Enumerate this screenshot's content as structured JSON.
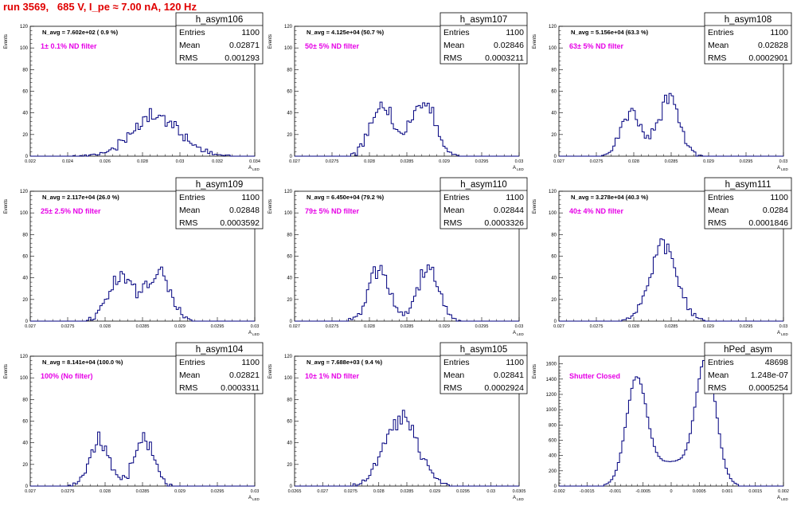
{
  "page_title": "run 3569,   685 V, I_pe ≈ 7.00 nA, 120 Hz",
  "y_axis_label": "Events",
  "x_axis_label": "A",
  "x_axis_sub": "LED",
  "stats_labels": {
    "entries": "Entries",
    "mean": "Mean",
    "rms": "RMS"
  },
  "colors": {
    "title": "#e00000",
    "hist": "#00007f",
    "annotation": "#e600e6",
    "frame": "#000000"
  },
  "chart_data": [
    {
      "type": "histogram",
      "name": "h_asym106",
      "navg": "N_avg = 7.602e+02 ( 0.9 %)",
      "note": "1± 0.1% ND filter",
      "entries": "1100",
      "mean": "0.02871",
      "rms": "0.001293",
      "xlim": [
        0.022,
        0.034
      ],
      "ylim": [
        0,
        120
      ],
      "xticks": [
        0.022,
        0.024,
        0.026,
        0.028,
        0.03,
        0.032,
        0.034
      ],
      "xtick_labels": [
        "0.022",
        "0.024",
        "0.026",
        "0.028",
        "0.03",
        "0.032",
        "0.034"
      ],
      "yticks": [
        0,
        20,
        40,
        60,
        80,
        100,
        120
      ],
      "ytick_labels": [
        "0",
        "20",
        "40",
        "60",
        "80",
        "100",
        "120"
      ],
      "dist": [
        {
          "c": 0.0287,
          "s": 0.0013,
          "a": 40
        }
      ],
      "peak": 44
    },
    {
      "type": "histogram",
      "name": "h_asym107",
      "navg": "N_avg = 4.125e+04 (50.7 %)",
      "note": "50± 5% ND filter",
      "entries": "1100",
      "mean": "0.02846",
      "rms": "0.0003211",
      "xlim": [
        0.027,
        0.03
      ],
      "ylim": [
        0,
        120
      ],
      "xticks": [
        0.027,
        0.0275,
        0.028,
        0.0285,
        0.029,
        0.0295,
        0.03
      ],
      "xtick_labels": [
        "0.027",
        "0.0275",
        "0.028",
        "0.0285",
        "0.029",
        "0.0295",
        "0.03"
      ],
      "yticks": [
        0,
        20,
        40,
        60,
        80,
        100,
        120
      ],
      "ytick_labels": [
        "0",
        "20",
        "40",
        "60",
        "80",
        "100",
        "120"
      ],
      "dist": [
        {
          "c": 0.02817,
          "s": 0.00015,
          "a": 38
        },
        {
          "c": 0.02872,
          "s": 0.00016,
          "a": 37
        }
      ],
      "peak": 50
    },
    {
      "type": "histogram",
      "name": "h_asym108",
      "navg": "N_avg = 5.156e+04 (63.3 %)",
      "note": "63± 5% ND filter",
      "entries": "1100",
      "mean": "0.02828",
      "rms": "0.0002901",
      "xlim": [
        0.027,
        0.03
      ],
      "ylim": [
        0,
        120
      ],
      "xticks": [
        0.027,
        0.0275,
        0.028,
        0.0285,
        0.029,
        0.0295,
        0.03
      ],
      "xtick_labels": [
        "0.027",
        "0.0275",
        "0.028",
        "0.0285",
        "0.029",
        "0.0295",
        "0.03"
      ],
      "yticks": [
        0,
        20,
        40,
        60,
        80,
        100,
        120
      ],
      "ytick_labels": [
        "0",
        "20",
        "40",
        "60",
        "80",
        "100",
        "120"
      ],
      "dist": [
        {
          "c": 0.02797,
          "s": 0.00014,
          "a": 36
        },
        {
          "c": 0.02847,
          "s": 0.00014,
          "a": 48
        }
      ],
      "peak": 58
    },
    {
      "type": "histogram",
      "name": "h_asym109",
      "navg": "N_avg = 2.117e+04 (26.0 %)",
      "note": "25± 2.5% ND filter",
      "entries": "1100",
      "mean": "0.02848",
      "rms": "0.0003592",
      "xlim": [
        0.027,
        0.03
      ],
      "ylim": [
        0,
        120
      ],
      "xticks": [
        0.027,
        0.0275,
        0.028,
        0.0285,
        0.029,
        0.0295,
        0.03
      ],
      "xtick_labels": [
        "0.027",
        "0.0275",
        "0.028",
        "0.0285",
        "0.029",
        "0.0295",
        "0.03"
      ],
      "yticks": [
        0,
        20,
        40,
        60,
        80,
        100,
        120
      ],
      "ytick_labels": [
        "0",
        "20",
        "40",
        "60",
        "80",
        "100",
        "120"
      ],
      "dist": [
        {
          "c": 0.02822,
          "s": 0.00017,
          "a": 35
        },
        {
          "c": 0.02872,
          "s": 0.00016,
          "a": 36
        }
      ],
      "peak": 50
    },
    {
      "type": "histogram",
      "name": "h_asym110",
      "navg": "N_avg = 6.450e+04 (79.2 %)",
      "note": "79± 5% ND filter",
      "entries": "1100",
      "mean": "0.02844",
      "rms": "0.0003326",
      "xlim": [
        0.027,
        0.03
      ],
      "ylim": [
        0,
        120
      ],
      "xticks": [
        0.027,
        0.0275,
        0.028,
        0.0285,
        0.029,
        0.0295,
        0.03
      ],
      "xtick_labels": [
        "0.027",
        "0.0275",
        "0.028",
        "0.0285",
        "0.029",
        "0.0295",
        "0.03"
      ],
      "yticks": [
        0,
        20,
        40,
        60,
        80,
        100,
        120
      ],
      "ytick_labels": [
        "0",
        "20",
        "40",
        "60",
        "80",
        "100",
        "120"
      ],
      "dist": [
        {
          "c": 0.02812,
          "s": 0.00014,
          "a": 41
        },
        {
          "c": 0.02878,
          "s": 0.00014,
          "a": 43
        }
      ],
      "peak": 52
    },
    {
      "type": "histogram",
      "name": "h_asym111",
      "navg": "N_avg = 3.278e+04 (40.3 %)",
      "note": "40± 4% ND filter",
      "entries": "1100",
      "mean": "0.0284",
      "rms": "0.0001846",
      "xlim": [
        0.027,
        0.03
      ],
      "ylim": [
        0,
        120
      ],
      "xticks": [
        0.027,
        0.0275,
        0.028,
        0.0285,
        0.029,
        0.0295,
        0.03
      ],
      "xtick_labels": [
        "0.027",
        "0.0275",
        "0.028",
        "0.0285",
        "0.029",
        "0.0295",
        "0.03"
      ],
      "yticks": [
        0,
        20,
        40,
        60,
        80,
        100,
        120
      ],
      "ytick_labels": [
        "0",
        "20",
        "40",
        "60",
        "80",
        "100",
        "120"
      ],
      "dist": [
        {
          "c": 0.0284,
          "s": 0.00018,
          "a": 70
        }
      ],
      "peak": 76
    },
    {
      "type": "histogram",
      "name": "h_asym104",
      "navg": "N_avg = 8.141e+04 (100.0 %)",
      "note": "100% (No filter)",
      "entries": "1100",
      "mean": "0.02821",
      "rms": "0.0003311",
      "xlim": [
        0.027,
        0.03
      ],
      "ylim": [
        0,
        120
      ],
      "xticks": [
        0.027,
        0.0275,
        0.028,
        0.0285,
        0.029,
        0.0295,
        0.03
      ],
      "xtick_labels": [
        "0.027",
        "0.0275",
        "0.028",
        "0.0285",
        "0.029",
        "0.0295",
        "0.03"
      ],
      "yticks": [
        0,
        20,
        40,
        60,
        80,
        100,
        120
      ],
      "ytick_labels": [
        "0",
        "20",
        "40",
        "60",
        "80",
        "100",
        "120"
      ],
      "dist": [
        {
          "c": 0.02792,
          "s": 0.00013,
          "a": 40
        },
        {
          "c": 0.02852,
          "s": 0.00013,
          "a": 41
        }
      ],
      "peak": 50
    },
    {
      "type": "histogram",
      "name": "h_asym105",
      "navg": "N_avg = 7.688e+03 ( 9.4 %)",
      "note": "10± 1% ND filter",
      "entries": "1100",
      "mean": "0.02841",
      "rms": "0.0002924",
      "xlim": [
        0.0265,
        0.0305
      ],
      "ylim": [
        0,
        120
      ],
      "xticks": [
        0.0265,
        0.027,
        0.0275,
        0.028,
        0.0285,
        0.029,
        0.0295,
        0.03,
        0.0305
      ],
      "xtick_labels": [
        "0.0265",
        "0.027",
        "0.0275",
        "0.028",
        "0.0285",
        "0.029",
        "0.0295",
        "0.03",
        "0.0305"
      ],
      "yticks": [
        0,
        20,
        40,
        60,
        80,
        100,
        120
      ],
      "ytick_labels": [
        "0",
        "20",
        "40",
        "60",
        "80",
        "100",
        "120"
      ],
      "dist": [
        {
          "c": 0.02841,
          "s": 0.00029,
          "a": 60
        }
      ],
      "peak": 70
    },
    {
      "type": "histogram",
      "name": "hPed_asym",
      "navg": "",
      "note": "Shutter Closed",
      "entries": "48698",
      "mean": "1.248e-07",
      "rms": "0.0005254",
      "xlim": [
        -0.002,
        0.002
      ],
      "ylim": [
        0,
        1700
      ],
      "xticks": [
        -0.002,
        -0.0015,
        -0.001,
        -0.0005,
        0,
        0.0005,
        0.001,
        0.0015,
        0.002
      ],
      "xtick_labels": [
        "-0.002",
        "-0.0015",
        "-0.001",
        "-0.0005",
        "0",
        "0.0005",
        "0.001",
        "0.0015",
        "0.002"
      ],
      "yticks": [
        0,
        200,
        400,
        600,
        800,
        1000,
        1200,
        1400,
        1600
      ],
      "ytick_labels": [
        "0",
        "200",
        "400",
        "600",
        "800",
        "1000",
        "1200",
        "1400",
        "1600"
      ],
      "dist": [
        {
          "c": -0.00062,
          "s": 0.00018,
          "a": 1380
        },
        {
          "c": 0.00062,
          "s": 0.00018,
          "a": 1620
        },
        {
          "c": 0,
          "s": 0.00045,
          "a": 330
        }
      ],
      "peak": 1660
    }
  ]
}
